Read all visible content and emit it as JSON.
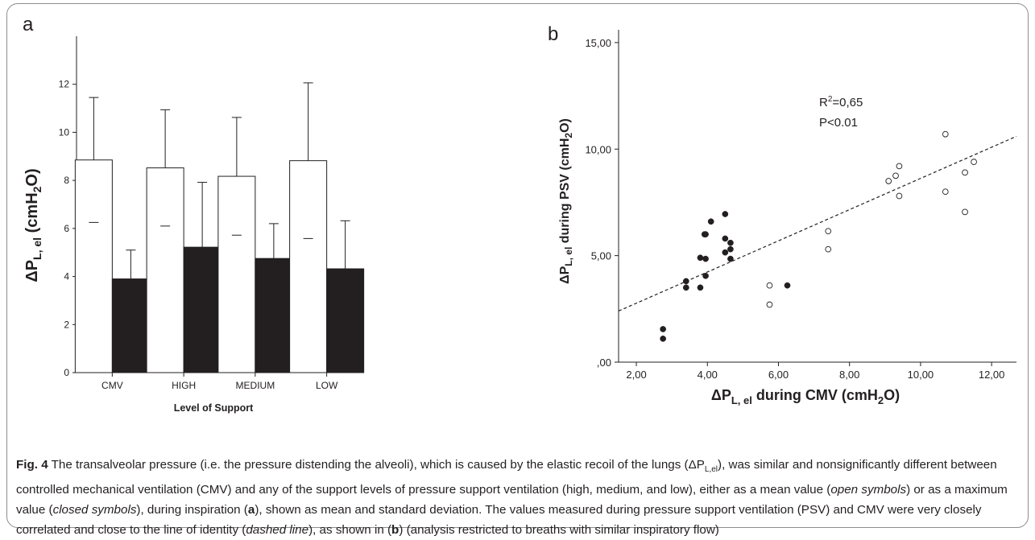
{
  "figure": {
    "panel_a_letter": "a",
    "panel_b_letter": "b"
  },
  "caption": {
    "label": "Fig. 4",
    "p1": " The transalveolar pressure (i.e. the pressure distending the alveoli), which is caused by the elastic recoil of the lungs (ΔP",
    "p1_sub": "L,el",
    "p2": "), was similar and nonsignificantly different between controlled mechanical ventilation (CMV) and any of the support levels of pressure support ventilation (high, medium, and low), either as a mean value (",
    "open_symbols": "open symbols",
    "p3": ") or as a maximum value (",
    "closed_symbols": "closed symbols",
    "p4": "), during inspiration (",
    "ref_a": "a",
    "p5": "), shown as mean and standard deviation. The values measured during pressure support ventilation (PSV) and CMV were very closely correlated and close to the line of identity (",
    "dashed_line": "dashed line",
    "p6": "), as shown in (",
    "ref_b": "b",
    "p7": ") (analysis restricted to breaths with similar inspiratory flow)"
  },
  "chart_data": [
    {
      "type": "bar",
      "panel": "a",
      "categories": [
        "CMV",
        "HIGH",
        "MEDIUM",
        "LOW"
      ],
      "series": [
        {
          "name": "mean (open)",
          "fill": "#ffffff",
          "values": [
            8.85,
            8.52,
            8.17,
            8.82
          ],
          "sd": [
            2.6,
            2.42,
            2.45,
            3.24
          ]
        },
        {
          "name": "maximum (closed)",
          "fill": "#231f20",
          "values": [
            3.9,
            5.22,
            4.75,
            4.32
          ],
          "sd": [
            1.2,
            2.7,
            1.45,
            2.0
          ]
        }
      ],
      "xlabel": "Level of Support",
      "ylabel_main": "ΔP",
      "ylabel_sub": "L, el",
      "ylabel_unit": " (cmH",
      "ylabel_unit_sub": "2",
      "ylabel_unit_end": "O)",
      "ylim": [
        0,
        14
      ],
      "yticks": [
        0,
        2,
        4,
        6,
        8,
        10,
        12
      ],
      "ytick_labels": [
        "0",
        "2",
        "4",
        "6",
        "8",
        "10",
        "12"
      ]
    },
    {
      "type": "scatter",
      "panel": "b",
      "xlim": [
        1.5,
        12.7
      ],
      "ylim": [
        0,
        15.6
      ],
      "xticks": [
        2,
        4,
        6,
        8,
        10,
        12
      ],
      "xtick_labels": [
        "2,00",
        "4,00",
        "6,00",
        "8,00",
        "10,00",
        "12,00"
      ],
      "yticks": [
        0,
        5,
        10,
        15
      ],
      "ytick_labels": [
        ",00",
        "5,00",
        "10,00",
        "15,00"
      ],
      "xlabel_main": "ΔP",
      "xlabel_sub": "L, el",
      "xlabel_rest": " during CMV (cmH",
      "xlabel_unit_sub": "2",
      "xlabel_end": "O)",
      "ylabel_main": "ΔP",
      "ylabel_sub": "L, el",
      "ylabel_rest": " during PSV (cmH",
      "ylabel_unit_sub": "2",
      "ylabel_end": "O)",
      "r2_label": "R",
      "r2_sup": "2",
      "r2_value": "=0,65",
      "p_label": "P<0.01",
      "trendline": {
        "x0": 1.5,
        "y0": 2.4,
        "x1": 12.7,
        "y1": 10.6
      },
      "series": [
        {
          "name": "open",
          "marker": "open",
          "x": [
            10.7,
            9.4,
            9.3,
            9.1,
            11.5,
            11.25,
            9.4,
            10.7,
            11.25,
            7.4,
            7.4,
            5.75,
            5.75
          ],
          "y": [
            10.7,
            9.2,
            8.75,
            8.5,
            9.4,
            8.9,
            7.8,
            8.0,
            7.05,
            6.15,
            5.3,
            3.6,
            2.7
          ]
        },
        {
          "name": "closed",
          "marker": "closed",
          "x": [
            4.5,
            4.1,
            3.95,
            3.92,
            4.5,
            4.65,
            4.65,
            4.5,
            4.65,
            3.8,
            3.95,
            3.95,
            3.4,
            3.4,
            3.8,
            6.25,
            2.75,
            2.75
          ],
          "y": [
            6.95,
            6.6,
            6.0,
            6.0,
            5.8,
            5.6,
            5.3,
            5.15,
            4.85,
            4.9,
            4.85,
            4.05,
            3.8,
            3.5,
            3.5,
            3.6,
            1.55,
            1.1
          ]
        }
      ]
    }
  ]
}
